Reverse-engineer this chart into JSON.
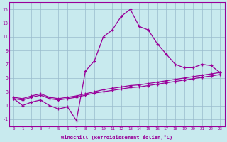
{
  "xlabel": "Windchill (Refroidissement éolien,°C)",
  "hours": [
    0,
    1,
    2,
    3,
    4,
    5,
    6,
    7,
    8,
    9,
    10,
    11,
    12,
    13,
    14,
    15,
    16,
    17,
    18,
    19,
    20,
    21,
    22,
    23
  ],
  "line_main": [
    2.0,
    1.0,
    1.5,
    1.8,
    1.0,
    0.5,
    0.8,
    -1.2,
    6.0,
    7.5,
    11.0,
    12.0,
    14.0,
    15.0,
    12.5,
    12.0,
    10.0,
    8.5,
    7.0,
    6.5,
    6.5,
    7.0,
    6.8,
    5.8
  ],
  "line_flat1": [
    2.0,
    1.8,
    2.2,
    2.5,
    2.0,
    1.8,
    2.0,
    2.2,
    2.5,
    2.8,
    3.0,
    3.2,
    3.4,
    3.6,
    3.7,
    3.9,
    4.1,
    4.3,
    4.5,
    4.7,
    4.9,
    5.1,
    5.3,
    5.5
  ],
  "line_flat2": [
    2.2,
    2.0,
    2.4,
    2.7,
    2.2,
    2.0,
    2.2,
    2.4,
    2.7,
    3.0,
    3.3,
    3.5,
    3.7,
    3.9,
    4.0,
    4.2,
    4.4,
    4.6,
    4.8,
    5.0,
    5.2,
    5.4,
    5.6,
    5.8
  ],
  "line_color": "#990099",
  "bg_color": "#c8eaee",
  "grid_color": "#99bbcc",
  "ylim": [
    -2,
    16
  ],
  "yticks": [
    -1,
    1,
    3,
    5,
    7,
    9,
    11,
    13,
    15
  ],
  "xlim": [
    -0.5,
    23.5
  ]
}
